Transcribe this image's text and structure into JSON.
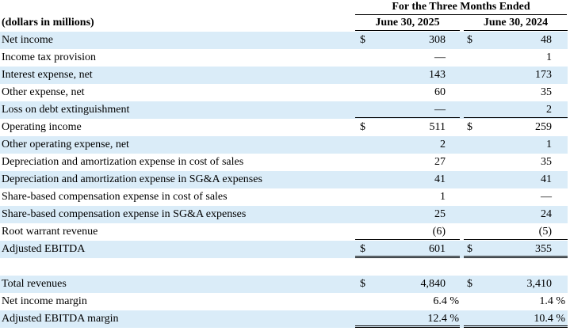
{
  "table": {
    "super_header": "For the Three Months Ended",
    "unit_label": "(dollars in millions)",
    "columns": [
      "June 30, 2025",
      "June 30, 2024"
    ],
    "sections": [
      {
        "rows": [
          {
            "label": "Net income",
            "cells": [
              {
                "symbol": "$",
                "value": "308"
              },
              {
                "symbol": "$",
                "value": "48"
              }
            ]
          },
          {
            "label": "Income tax provision",
            "cells": [
              {
                "value": "—"
              },
              {
                "value": "1"
              }
            ]
          },
          {
            "label": "Interest expense, net",
            "cells": [
              {
                "value": "143"
              },
              {
                "value": "173"
              }
            ]
          },
          {
            "label": "Other expense, net",
            "cells": [
              {
                "value": "60"
              },
              {
                "value": "35"
              }
            ]
          },
          {
            "label": "Loss on debt extinguishment",
            "cells": [
              {
                "value": "—"
              },
              {
                "value": "2"
              }
            ]
          },
          {
            "label": "Operating income",
            "cells": [
              {
                "symbol": "$",
                "value": "511"
              },
              {
                "symbol": "$",
                "value": "259"
              }
            ]
          },
          {
            "label": "Other operating expense, net",
            "cells": [
              {
                "value": "2"
              },
              {
                "value": "1"
              }
            ]
          },
          {
            "label": "Depreciation and amortization expense in cost of sales",
            "cells": [
              {
                "value": "27"
              },
              {
                "value": "35"
              }
            ]
          },
          {
            "label": "Depreciation and amortization expense in SG&A expenses",
            "cells": [
              {
                "value": "41"
              },
              {
                "value": "41"
              }
            ]
          },
          {
            "label": "Share-based compensation expense in cost of sales",
            "cells": [
              {
                "value": "1"
              },
              {
                "value": "—"
              }
            ]
          },
          {
            "label": "Share-based compensation expense in SG&A expenses",
            "cells": [
              {
                "value": "25"
              },
              {
                "value": "24"
              }
            ]
          },
          {
            "label": "Root warrant revenue",
            "cells": [
              {
                "value": "(6)"
              },
              {
                "value": "(5)"
              }
            ]
          },
          {
            "label": "Adjusted EBITDA",
            "cells": [
              {
                "symbol": "$",
                "value": "601"
              },
              {
                "symbol": "$",
                "value": "355"
              }
            ]
          }
        ]
      },
      {
        "rows": [
          {
            "label": "Total revenues",
            "cells": [
              {
                "symbol": "$",
                "value": "4,840"
              },
              {
                "symbol": "$",
                "value": "3,410"
              }
            ]
          },
          {
            "label": "Net income margin",
            "cells": [
              {
                "value": "6.4 %"
              },
              {
                "value": "1.4 %"
              }
            ]
          },
          {
            "label": "Adjusted EBITDA margin",
            "cells": [
              {
                "value": "12.4 %"
              },
              {
                "value": "10.4 %"
              }
            ]
          }
        ]
      }
    ]
  }
}
